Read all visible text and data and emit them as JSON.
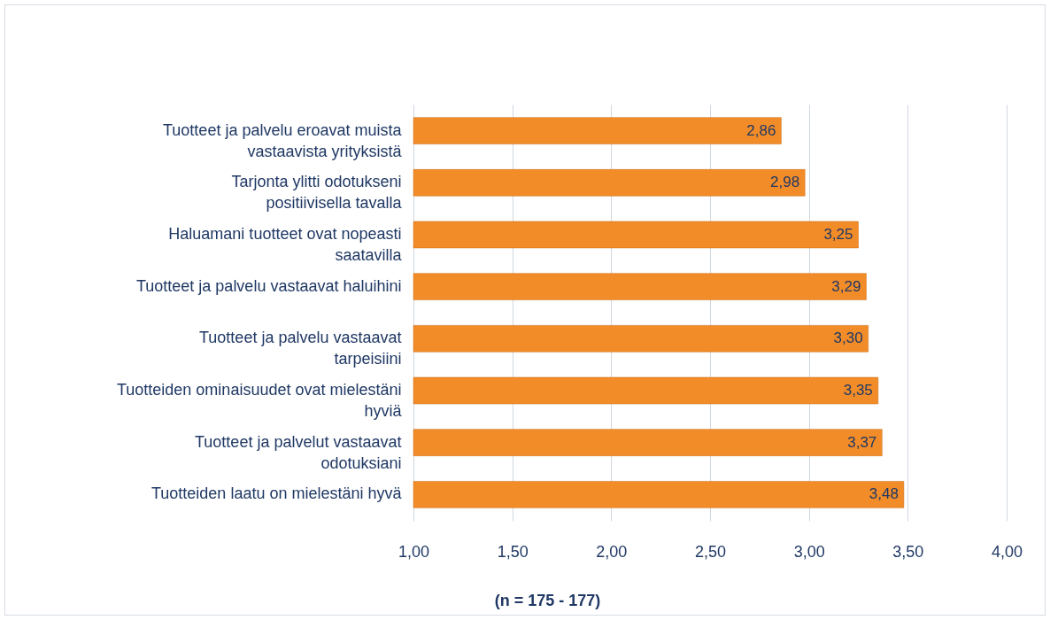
{
  "chart_data": {
    "type": "bar",
    "orientation": "horizontal",
    "categories": [
      "Tuotteet ja palvelu eroavat muista vastaavista yrityksistä",
      "Tarjonta ylitti odotukseni positiivisella tavalla",
      "Haluamani tuotteet ovat nopeasti saatavilla",
      "Tuotteet ja palvelu vastaavat haluihini",
      "Tuotteet ja palvelu vastaavat tarpeisiini",
      "Tuotteiden ominaisuudet ovat mielestäni hyviä",
      "Tuotteet ja palvelut vastaavat odotuksiani",
      "Tuotteiden laatu on mielestäni hyvä"
    ],
    "values": [
      2.86,
      2.98,
      3.25,
      3.29,
      3.3,
      3.35,
      3.37,
      3.48
    ],
    "value_labels": [
      "2,86",
      "2,98",
      "3,25",
      "3,29",
      "3,30",
      "3,35",
      "3,37",
      "3,48"
    ],
    "color": "#f28c28",
    "xlim": [
      1,
      4
    ],
    "xticks": [
      {
        "value": 1,
        "label": "1,00"
      },
      {
        "value": 1.5,
        "label": "1,50"
      },
      {
        "value": 2,
        "label": "2,00"
      },
      {
        "value": 2.5,
        "label": "2,50"
      },
      {
        "value": 3,
        "label": "3,00"
      },
      {
        "value": 3.5,
        "label": "3,50"
      },
      {
        "value": 4,
        "label": "4,00"
      }
    ],
    "grid": "x",
    "annotations": [
      "(n = 175 - 177)"
    ]
  }
}
